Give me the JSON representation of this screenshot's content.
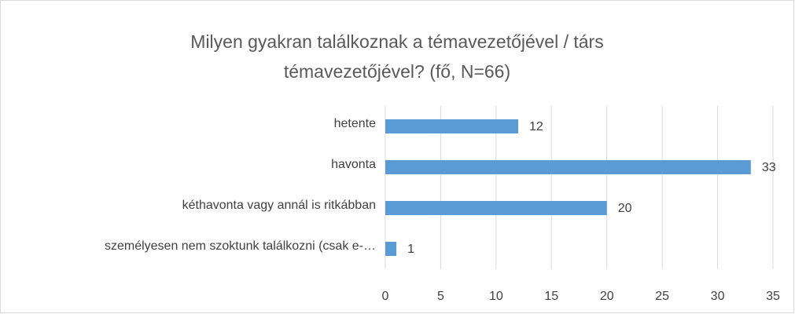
{
  "chart_data": {
    "type": "bar",
    "orientation": "horizontal",
    "title": "Milyen gyakran találkoznak a témavezetőjével / társ témavezetőjével? (fő, N=66)",
    "categories": [
      "hetente",
      "havonta",
      "kéthavonta vagy annál is ritkábban",
      "személyesen nem szoktunk találkozni (csak e-…"
    ],
    "values": [
      12,
      33,
      20,
      1
    ],
    "color": "#5b9bd5",
    "xlim": [
      0,
      35
    ],
    "xticks": [
      0,
      5,
      10,
      15,
      20,
      25,
      30,
      35
    ],
    "grid": true
  }
}
